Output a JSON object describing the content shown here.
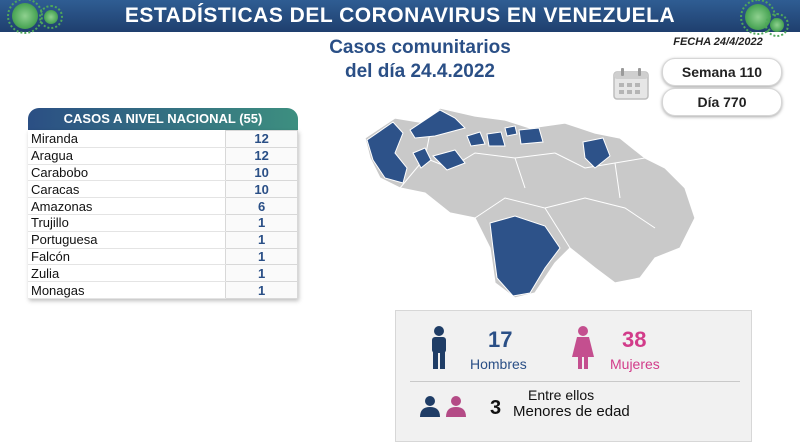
{
  "header": {
    "title": "ESTADÍSTICAS DEL CORONAVIRUS EN VENEZUELA"
  },
  "subtitle": {
    "line1": "Casos comunitarios",
    "line2": "del día 24.4.2022"
  },
  "fecha": "FECHA 24/4/2022",
  "semana": "Semana 110",
  "dia": "Día 770",
  "national": {
    "title": "CASOS A NIVEL NACIONAL",
    "total": "(55)",
    "rows": [
      {
        "state": "Miranda",
        "count": "12"
      },
      {
        "state": "Aragua",
        "count": "12"
      },
      {
        "state": "Carabobo",
        "count": "10"
      },
      {
        "state": "Caracas",
        "count": "10"
      },
      {
        "state": "Amazonas",
        "count": "6"
      },
      {
        "state": "Trujillo",
        "count": "1"
      },
      {
        "state": "Portuguesa",
        "count": "1"
      },
      {
        "state": "Falcón",
        "count": "1"
      },
      {
        "state": "Zulia",
        "count": "1"
      },
      {
        "state": "Monagas",
        "count": "1"
      }
    ]
  },
  "demographics": {
    "men_count": "17",
    "men_label": "Hombres",
    "women_count": "38",
    "women_label": "Mujeres",
    "among": "Entre ellos",
    "minors_count": "3",
    "minors_label": "Menores de edad"
  },
  "colors": {
    "header_blue": "#1f3f6e",
    "title_blue": "#2a4f86",
    "women_pink": "#d23c8a",
    "map_highlight": "#2d5289",
    "map_gray": "#c9c9c9"
  },
  "icons": [
    "virus-icon",
    "calendar-icon",
    "man-icon",
    "woman-icon",
    "people-icon"
  ]
}
